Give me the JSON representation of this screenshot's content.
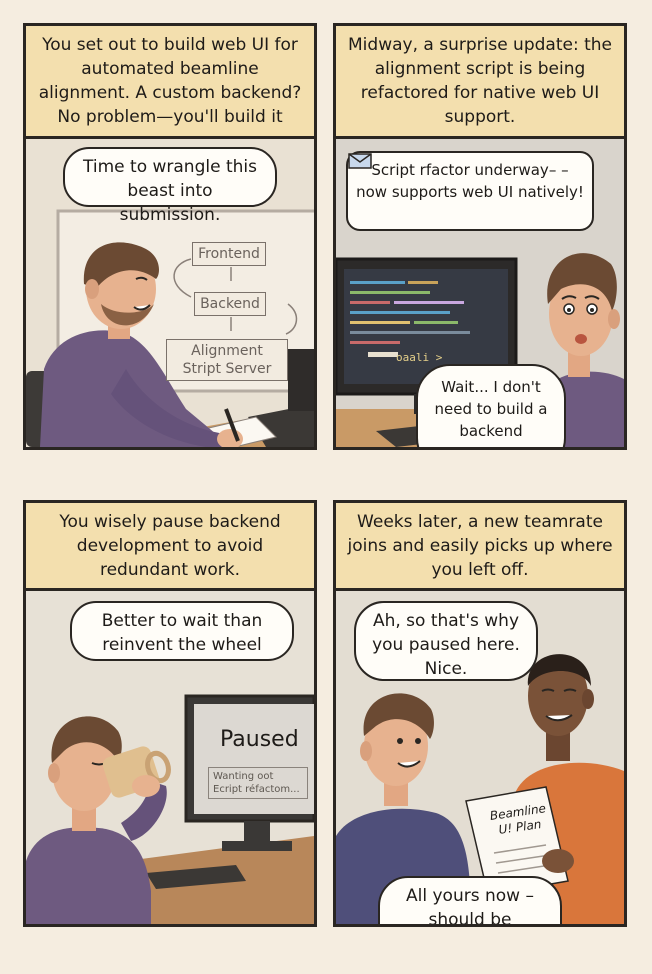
{
  "panels": [
    {
      "caption": "You set out to build web UI for automated beamline alignment. A custom backend? No problem—you'll build it",
      "bubble": "Time to wrangle this beast into submission.",
      "diagram": {
        "frontend": "Frontend",
        "backend": "Backend",
        "server": "Alignment Stript Server"
      }
    },
    {
      "caption": "Midway, a surprise update: the alignment script is being refactored for native web UI support.",
      "message": {
        "icon": "envelope-icon",
        "text": "Script rfactor underway– – now supports web UI natively!"
      },
      "screen_text": "oaali >",
      "bubble": "Wait... I don't need to build a backend anymore?"
    },
    {
      "caption": "You wisely pause backend development to avoid redundant work.",
      "bubble": "Better to wait than reinvent the wheel",
      "screen": {
        "title": "Paused",
        "sub": "Wanting oot Ecript réfactom..."
      }
    },
    {
      "caption": "Weeks later, a new teamrate joins and easily picks up where you left off.",
      "bubble_top": "Ah, so that's why you paused here. Nice.",
      "paper": "Beamline U! Plan",
      "bubble_bottom": "All yours now – should be smoother sailing!"
    }
  ],
  "colors": {
    "caption_bg": "#f3dfae",
    "panel_border": "#2a2622",
    "sweater": "#6e5a80",
    "teammate_shirt": "#d9763b",
    "hair": "#6b4a33"
  }
}
